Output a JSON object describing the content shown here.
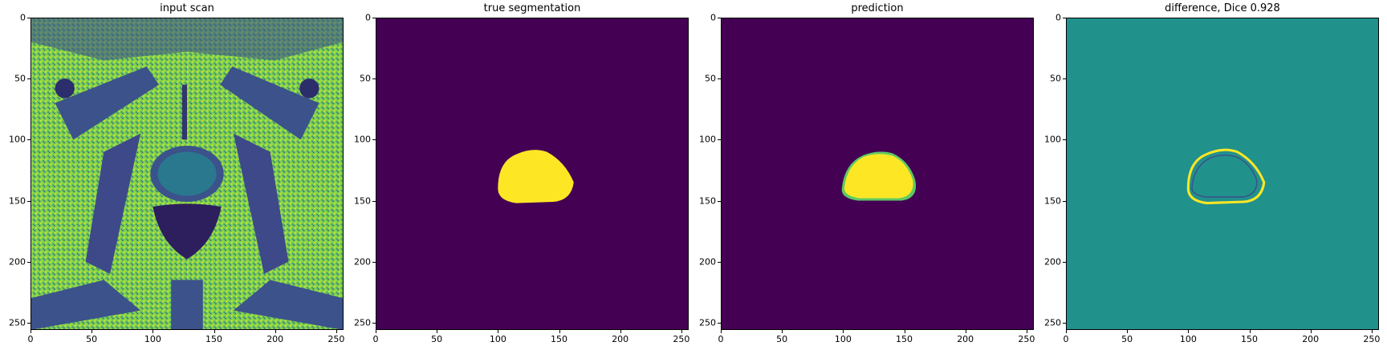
{
  "panels": [
    {
      "title": "input scan",
      "kind": "mri"
    },
    {
      "title": "true segmentation",
      "kind": "mask"
    },
    {
      "title": "prediction",
      "kind": "prediction"
    },
    {
      "title": "difference, Dice 0.928",
      "kind": "difference"
    }
  ],
  "axes": {
    "x_ticks": [
      "0",
      "50",
      "100",
      "150",
      "200",
      "250"
    ],
    "y_ticks": [
      "0",
      "50",
      "100",
      "150",
      "200",
      "250"
    ],
    "x_values": [
      0,
      50,
      100,
      150,
      200,
      250
    ],
    "y_values": [
      0,
      50,
      100,
      150,
      200,
      250
    ],
    "range": [
      0,
      256
    ]
  },
  "colors": {
    "viridis_dark": "#440154",
    "viridis_teal": "#21918c",
    "viridis_yellow": "#fde725",
    "viridis_green": "#5ec962",
    "viridis_blue": "#3b528b"
  }
}
